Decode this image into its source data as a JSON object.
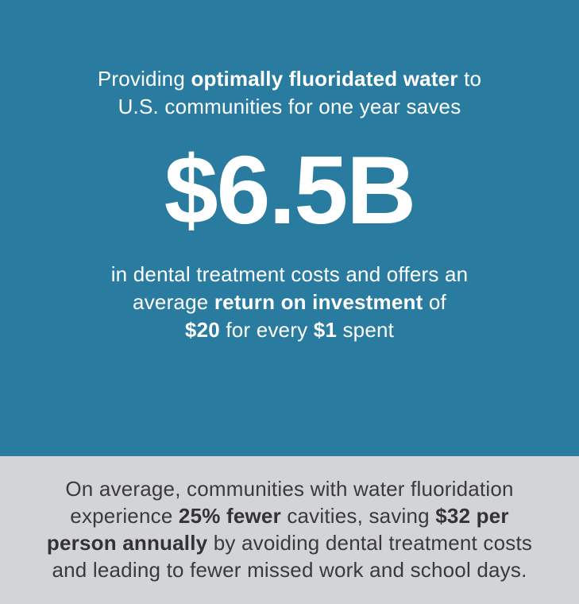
{
  "colors": {
    "teal_background": "#2a7ba0",
    "gray_background": "#d2d4d5",
    "light_text": "#ffffff",
    "dark_text": "#3a3a3c"
  },
  "hero": {
    "intro": {
      "line1_pre": "Providing ",
      "line1_bold": "optimally fluoridated water",
      "line1_post": " to",
      "line2": "U.S. communities for one year saves"
    },
    "amount": "$6.5B",
    "detail": {
      "line1": "in dental treatment costs and offers an",
      "line2_pre": "average ",
      "line2_bold": "return on investment",
      "line2_post": " of",
      "line3_bold1": "$20",
      "line3_mid": " for every ",
      "line3_bold2": "$1",
      "line3_post": " spent"
    }
  },
  "footer": {
    "line1": "On average, communities with water fluoridation",
    "line2_pre": "experience ",
    "line2_bold1": "25% fewer",
    "line2_mid": " cavities, saving ",
    "line2_bold2": "$32 per",
    "line3_bold": "person annually",
    "line3_post": " by avoiding dental treatment costs",
    "line4": "and leading to fewer missed work and school days."
  }
}
